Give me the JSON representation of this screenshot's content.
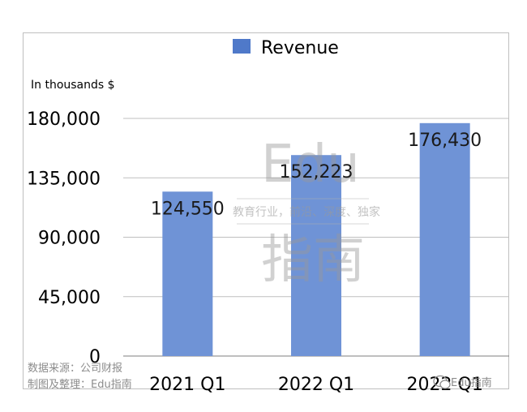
{
  "chart_data": {
    "type": "bar",
    "categories": [
      "2021 Q1",
      "2022 Q1",
      "2022 Q1"
    ],
    "series": [
      {
        "name": "Revenue",
        "values": [
          124550,
          152223,
          176430
        ],
        "color": "#6f93d6"
      }
    ],
    "data_labels": [
      "124,550",
      "152,223",
      "176,430"
    ],
    "ylabel": "In thousands $",
    "ylim": [
      0,
      180000
    ],
    "yticks": [
      0,
      45000,
      90000,
      135000,
      180000
    ],
    "ytick_labels": [
      "0",
      "45,000",
      "90,000",
      "135,000",
      "180,000"
    ],
    "grid": true,
    "legend": "top-center"
  },
  "legend_swatch_color": "#4f79c9",
  "watermark": {
    "latin": "Edu",
    "tagline": "教育行业，前沿、深度、独家",
    "cjk": "指南"
  },
  "source_note": {
    "line1": "数据来源：公司财报",
    "line2": "制图及整理：Edu指南"
  },
  "brand_badge": {
    "text": "Edu指南",
    "icon": "wechat-icon"
  }
}
